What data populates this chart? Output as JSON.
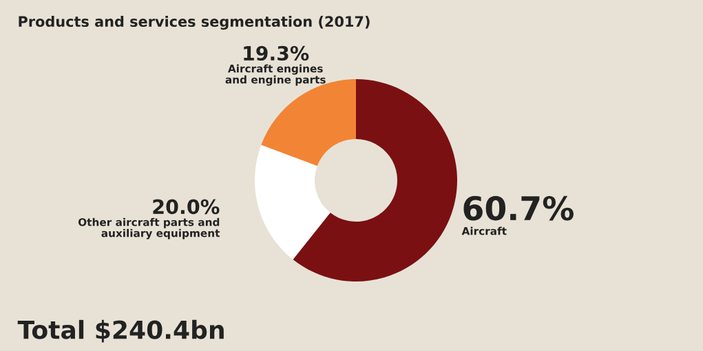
{
  "chart_data": {
    "type": "donut",
    "title": "Products and services segmentation (2017)",
    "categories": [
      "Aircraft",
      "Other aircraft parts and\nauxiliary equipment",
      "Aircraft engines\nand engine parts"
    ],
    "values": [
      60.7,
      20.0,
      19.3
    ],
    "colors": [
      "#7a1012",
      "#ffffff",
      "#f28435"
    ],
    "value_labels": [
      "60.7%",
      "20.0%",
      "19.3%"
    ],
    "annotations": [
      "Total $240.4bn"
    ]
  }
}
